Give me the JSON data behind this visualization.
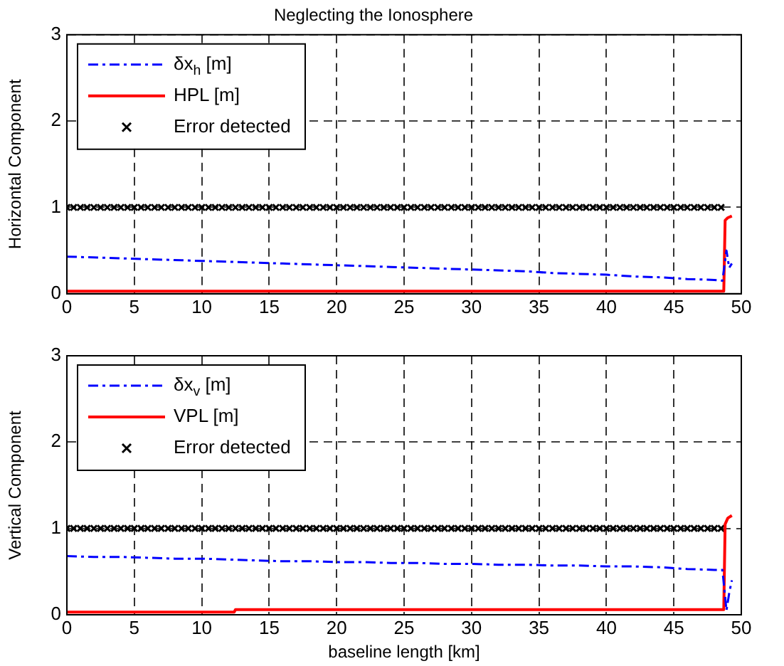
{
  "chart_data": [
    {
      "type": "line",
      "title": "Neglecting the Ionosphere",
      "ylabel": "Horizontal Component",
      "xlim": [
        0,
        50
      ],
      "xticks": [
        0,
        5,
        10,
        15,
        20,
        25,
        30,
        35,
        40,
        45,
        50
      ],
      "ylim": [
        0,
        3
      ],
      "yticks": [
        0,
        1,
        2,
        3
      ],
      "grid": true,
      "legend": "top left",
      "series": [
        {
          "name": "δx$_{h}$ [m]",
          "color": "#0000ff",
          "line_style": "dashdot",
          "marker": "none",
          "x": [
            0,
            2,
            4,
            6,
            8,
            10,
            12,
            14,
            16,
            18,
            20,
            22,
            24,
            26,
            28,
            30,
            32,
            34,
            36,
            38,
            40,
            42,
            44,
            46,
            48,
            48.6,
            48.9,
            49.1,
            49.3
          ],
          "values": [
            0.43,
            0.42,
            0.41,
            0.4,
            0.39,
            0.38,
            0.37,
            0.36,
            0.35,
            0.34,
            0.33,
            0.32,
            0.31,
            0.3,
            0.29,
            0.28,
            0.27,
            0.26,
            0.24,
            0.23,
            0.22,
            0.2,
            0.19,
            0.17,
            0.16,
            0.15,
            0.5,
            0.3,
            0.35
          ]
        },
        {
          "name": "HPL [m]",
          "color": "#ff0000",
          "line_style": "solid",
          "marker": "none",
          "x": [
            0,
            48.7,
            48.8,
            49,
            49.3
          ],
          "values": [
            0.03,
            0.03,
            0.85,
            0.88,
            0.9
          ]
        },
        {
          "name": "Error detected",
          "type": "scatter",
          "color": "#000000",
          "marker": "cross",
          "x": [
            0,
            0.5,
            1,
            1.5,
            2,
            2.5,
            3,
            3.5,
            4,
            4.5,
            5,
            5.5,
            6,
            6.5,
            7,
            7.5,
            8,
            8.5,
            9,
            9.5,
            10,
            10.5,
            11,
            11.5,
            12,
            12.5,
            13,
            13.5,
            14,
            14.5,
            15,
            15.5,
            16,
            16.5,
            17,
            17.5,
            18,
            18.5,
            19,
            19.5,
            20,
            20.5,
            21,
            21.5,
            22,
            22.5,
            23,
            23.5,
            24,
            24.5,
            25,
            25.5,
            26,
            26.5,
            27,
            27.5,
            28,
            28.5,
            29,
            29.5,
            30,
            30.5,
            31,
            31.5,
            32,
            32.5,
            33,
            33.5,
            34,
            34.5,
            35,
            35.5,
            36,
            36.5,
            37,
            37.5,
            38,
            38.5,
            39,
            39.5,
            40,
            40.5,
            41,
            41.5,
            42,
            42.5,
            43,
            43.5,
            44,
            44.5,
            45,
            45.5,
            46,
            46.5,
            47,
            47.5,
            48,
            48.5
          ],
          "values": [
            1,
            1,
            1,
            1,
            1,
            1,
            1,
            1,
            1,
            1,
            1,
            1,
            1,
            1,
            1,
            1,
            1,
            1,
            1,
            1,
            1,
            1,
            1,
            1,
            1,
            1,
            1,
            1,
            1,
            1,
            1,
            1,
            1,
            1,
            1,
            1,
            1,
            1,
            1,
            1,
            1,
            1,
            1,
            1,
            1,
            1,
            1,
            1,
            1,
            1,
            1,
            1,
            1,
            1,
            1,
            1,
            1,
            1,
            1,
            1,
            1,
            1,
            1,
            1,
            1,
            1,
            1,
            1,
            1,
            1,
            1,
            1,
            1,
            1,
            1,
            1,
            1,
            1,
            1,
            1,
            1,
            1,
            1,
            1,
            1,
            1,
            1,
            1,
            1,
            1,
            1,
            1,
            1,
            1,
            1,
            1,
            1,
            1
          ]
        }
      ]
    },
    {
      "type": "line",
      "xlabel": "baseline length [km]",
      "ylabel": "Vertical Component",
      "xlim": [
        0,
        50
      ],
      "xticks": [
        0,
        5,
        10,
        15,
        20,
        25,
        30,
        35,
        40,
        45,
        50
      ],
      "ylim": [
        0,
        3
      ],
      "yticks": [
        0,
        1,
        2,
        3
      ],
      "grid": true,
      "legend": "top left",
      "series": [
        {
          "name": "δx$_{v}$ [m]",
          "color": "#0000ff",
          "line_style": "dashdot",
          "marker": "none",
          "x": [
            0,
            2,
            4,
            6,
            8,
            10,
            12,
            14,
            16,
            18,
            20,
            22,
            24,
            26,
            28,
            30,
            32,
            34,
            36,
            38,
            40,
            42,
            44,
            46,
            48,
            48.6,
            48.9,
            49.1,
            49.3
          ],
          "values": [
            0.68,
            0.67,
            0.67,
            0.66,
            0.65,
            0.65,
            0.64,
            0.63,
            0.62,
            0.62,
            0.61,
            0.61,
            0.6,
            0.6,
            0.59,
            0.59,
            0.58,
            0.58,
            0.57,
            0.57,
            0.56,
            0.56,
            0.55,
            0.53,
            0.52,
            0.52,
            0.05,
            0.25,
            0.4
          ]
        },
        {
          "name": "VPL [m]",
          "color": "#ff0000",
          "line_style": "solid",
          "marker": "none",
          "x": [
            0,
            12.4,
            12.5,
            48.7,
            48.8,
            49,
            49.3
          ],
          "values": [
            0.03,
            0.03,
            0.06,
            0.06,
            1.05,
            1.12,
            1.15
          ]
        },
        {
          "name": "Error detected",
          "type": "scatter",
          "color": "#000000",
          "marker": "cross",
          "x": [
            0,
            0.5,
            1,
            1.5,
            2,
            2.5,
            3,
            3.5,
            4,
            4.5,
            5,
            5.5,
            6,
            6.5,
            7,
            7.5,
            8,
            8.5,
            9,
            9.5,
            10,
            10.5,
            11,
            11.5,
            12,
            12.5,
            13,
            13.5,
            14,
            14.5,
            15,
            15.5,
            16,
            16.5,
            17,
            17.5,
            18,
            18.5,
            19,
            19.5,
            20,
            20.5,
            21,
            21.5,
            22,
            22.5,
            23,
            23.5,
            24,
            24.5,
            25,
            25.5,
            26,
            26.5,
            27,
            27.5,
            28,
            28.5,
            29,
            29.5,
            30,
            30.5,
            31,
            31.5,
            32,
            32.5,
            33,
            33.5,
            34,
            34.5,
            35,
            35.5,
            36,
            36.5,
            37,
            37.5,
            38,
            38.5,
            39,
            39.5,
            40,
            40.5,
            41,
            41.5,
            42,
            42.5,
            43,
            43.5,
            44,
            44.5,
            45,
            45.5,
            46,
            46.5,
            47,
            47.5,
            48,
            48.5
          ],
          "values": [
            1,
            1,
            1,
            1,
            1,
            1,
            1,
            1,
            1,
            1,
            1,
            1,
            1,
            1,
            1,
            1,
            1,
            1,
            1,
            1,
            1,
            1,
            1,
            1,
            1,
            1,
            1,
            1,
            1,
            1,
            1,
            1,
            1,
            1,
            1,
            1,
            1,
            1,
            1,
            1,
            1,
            1,
            1,
            1,
            1,
            1,
            1,
            1,
            1,
            1,
            1,
            1,
            1,
            1,
            1,
            1,
            1,
            1,
            1,
            1,
            1,
            1,
            1,
            1,
            1,
            1,
            1,
            1,
            1,
            1,
            1,
            1,
            1,
            1,
            1,
            1,
            1,
            1,
            1,
            1,
            1,
            1,
            1,
            1,
            1,
            1,
            1,
            1,
            1,
            1,
            1,
            1,
            1,
            1,
            1,
            1,
            1,
            1
          ]
        }
      ]
    }
  ]
}
